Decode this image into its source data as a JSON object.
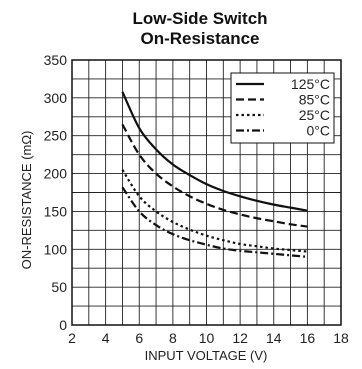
{
  "chart_data": {
    "type": "line",
    "title": "Low-Side Switch",
    "subtitle": "On-Resistance",
    "xlabel": "INPUT VOLTAGE (V)",
    "ylabel": "ON-RESISTANCE (mΩ)",
    "xlim": [
      2,
      18
    ],
    "ylim": [
      0,
      350
    ],
    "x_ticks": [
      "2",
      "4",
      "6",
      "8",
      "10",
      "12",
      "14",
      "16",
      "18"
    ],
    "y_ticks": [
      "0",
      "50",
      "100",
      "150",
      "200",
      "250",
      "300",
      "350"
    ],
    "grid": true,
    "legend_position": "top-right",
    "series": [
      {
        "name": "125°C",
        "style": "solid",
        "x": [
          5,
          6,
          7,
          8,
          9,
          10,
          11,
          12,
          13,
          14,
          15,
          16
        ],
        "y": [
          308,
          260,
          232,
          212,
          198,
          186,
          177,
          170,
          164,
          159,
          155,
          151
        ]
      },
      {
        "name": "85°C",
        "style": "dashed",
        "x": [
          5,
          6,
          7,
          8,
          9,
          10,
          11,
          12,
          13,
          14,
          15,
          16
        ],
        "y": [
          265,
          225,
          200,
          183,
          170,
          160,
          152,
          146,
          141,
          137,
          133,
          130
        ]
      },
      {
        "name": "25°C",
        "style": "dotted",
        "x": [
          5,
          6,
          7,
          8,
          9,
          10,
          11,
          12,
          13,
          14,
          15,
          16
        ],
        "y": [
          205,
          170,
          150,
          136,
          126,
          118,
          112,
          107,
          104,
          101,
          99,
          97
        ]
      },
      {
        "name": "0°C",
        "style": "dashdot",
        "x": [
          5,
          6,
          7,
          8,
          9,
          10,
          11,
          12,
          13,
          14,
          15,
          16
        ],
        "y": [
          182,
          150,
          132,
          120,
          112,
          106,
          101,
          98,
          96,
          94,
          92,
          90
        ]
      }
    ]
  }
}
